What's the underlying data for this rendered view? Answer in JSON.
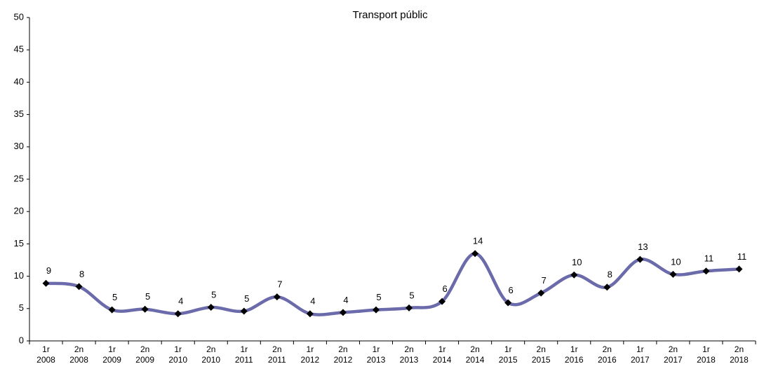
{
  "chart_data": {
    "type": "line",
    "title": "Transport públic",
    "categories": [
      [
        "1r",
        "2008"
      ],
      [
        "2n",
        "2008"
      ],
      [
        "1r",
        "2009"
      ],
      [
        "2n",
        "2009"
      ],
      [
        "1r",
        "2010"
      ],
      [
        "2n",
        "2010"
      ],
      [
        "1r",
        "2011"
      ],
      [
        "2n",
        "2011"
      ],
      [
        "1r",
        "2012"
      ],
      [
        "2n",
        "2012"
      ],
      [
        "1r",
        "2013"
      ],
      [
        "2n",
        "2013"
      ],
      [
        "1r",
        "2014"
      ],
      [
        "2n",
        "2014"
      ],
      [
        "1r",
        "2015"
      ],
      [
        "2n",
        "2015"
      ],
      [
        "1r",
        "2016"
      ],
      [
        "2n",
        "2016"
      ],
      [
        "1r",
        "2017"
      ],
      [
        "2n",
        "2017"
      ],
      [
        "1r",
        "2018"
      ],
      [
        "2n",
        "2018"
      ]
    ],
    "series": [
      {
        "name": "Transport públic",
        "color": "#6b6bab",
        "values": [
          8.9,
          8.4,
          4.8,
          4.9,
          4.2,
          5.2,
          4.6,
          6.8,
          4.2,
          4.4,
          4.8,
          5.1,
          6.1,
          13.5,
          5.9,
          7.4,
          10.2,
          8.3,
          12.6,
          10.3,
          10.8,
          11.1
        ],
        "value_labels": [
          9,
          8,
          5,
          5,
          4,
          5,
          5,
          7,
          4,
          4,
          5,
          5,
          6,
          14,
          6,
          7,
          10,
          8,
          13,
          10,
          11,
          11
        ]
      }
    ],
    "ylim": [
      0,
      50
    ],
    "yticks": [
      0,
      5,
      10,
      15,
      20,
      25,
      30,
      35,
      40,
      45,
      50
    ],
    "smooth": true,
    "grid": false
  }
}
